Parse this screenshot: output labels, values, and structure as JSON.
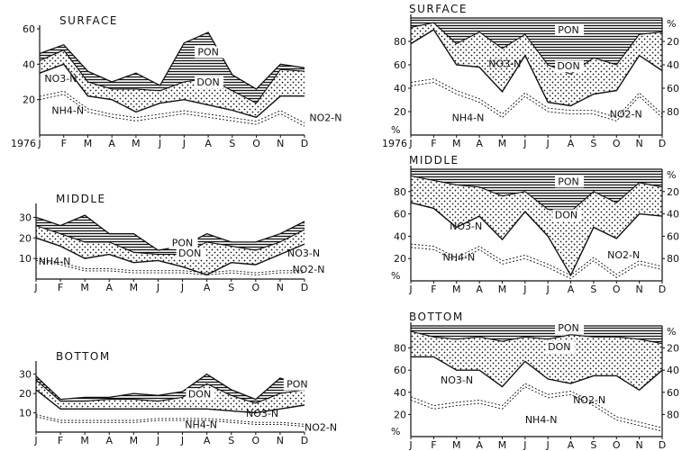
{
  "months": [
    "J",
    "F",
    "M",
    "A",
    "M",
    "J",
    "J",
    "A",
    "S",
    "O",
    "N",
    "D"
  ],
  "year_label": "1976",
  "colors": {
    "ink": "#111111",
    "paper": "#ffffff"
  },
  "chart_data": [
    {
      "id": "abs-surface",
      "type": "area",
      "panel": "left",
      "title": "SURFACE",
      "ylim": [
        0,
        60
      ],
      "yticks": [
        20,
        40,
        60
      ],
      "year_label": true,
      "x": [
        "J",
        "F",
        "M",
        "A",
        "M",
        "J",
        "J",
        "A",
        "S",
        "O",
        "N",
        "D"
      ],
      "series": [
        {
          "name": "NH4-N",
          "values": [
            20,
            23,
            13,
            10,
            8,
            10,
            12,
            10,
            8,
            6,
            12,
            5
          ]
        },
        {
          "name": "NO3-N",
          "values": [
            35,
            40,
            22,
            20,
            13,
            18,
            20,
            17,
            14,
            10,
            22,
            22
          ]
        },
        {
          "name": "DON",
          "values": [
            42,
            48,
            30,
            26,
            26,
            25,
            30,
            32,
            25,
            18,
            37,
            36
          ]
        },
        {
          "name": "PON",
          "values": [
            46,
            51,
            36,
            30,
            35,
            28,
            52,
            58,
            34,
            26,
            40,
            38
          ]
        }
      ],
      "labels": {
        "series": [
          "PON",
          "DON",
          "NO3-N",
          "NH4-N",
          "NO2-N"
        ]
      }
    },
    {
      "id": "abs-middle",
      "type": "area",
      "panel": "left",
      "title": "MIDDLE",
      "ylim": [
        0,
        35
      ],
      "yticks": [
        10,
        20,
        30
      ],
      "x": [
        "J",
        "F",
        "M",
        "A",
        "M",
        "J",
        "J",
        "A",
        "S",
        "O",
        "N",
        "D"
      ],
      "series": [
        {
          "name": "NH4-N",
          "values": [
            9,
            7,
            4,
            4,
            3,
            3,
            3,
            2,
            3,
            2,
            3,
            3
          ]
        },
        {
          "name": "NO3-N",
          "values": [
            20,
            16,
            10,
            12,
            8,
            9,
            6,
            2,
            8,
            7,
            12,
            17
          ]
        },
        {
          "name": "DON",
          "values": [
            26,
            22,
            18,
            18,
            13,
            12,
            12,
            18,
            16,
            14,
            18,
            24
          ]
        },
        {
          "name": "PON",
          "values": [
            30,
            26,
            31,
            22,
            22,
            14,
            16,
            22,
            18,
            18,
            22,
            28
          ]
        }
      ],
      "labels": {
        "series": [
          "PON",
          "DON",
          "NO3-N",
          "NH4-N",
          "NO2-N"
        ]
      }
    },
    {
      "id": "abs-bottom",
      "type": "area",
      "panel": "left",
      "title": "BOTTOM",
      "ylim": [
        0,
        35
      ],
      "yticks": [
        10,
        20,
        30
      ],
      "x": [
        "J",
        "F",
        "M",
        "A",
        "M",
        "J",
        "J",
        "A",
        "S",
        "O",
        "N",
        "D"
      ],
      "series": [
        {
          "name": "NH4-N",
          "values": [
            8,
            5,
            5,
            5,
            5,
            6,
            6,
            6,
            5,
            4,
            4,
            3
          ]
        },
        {
          "name": "NO3-N",
          "values": [
            22,
            12,
            12,
            12,
            12,
            12,
            12,
            12,
            11,
            10,
            12,
            14
          ]
        },
        {
          "name": "DON",
          "values": [
            27,
            16,
            16,
            17,
            17,
            16,
            18,
            25,
            19,
            15,
            20,
            22
          ]
        },
        {
          "name": "PON",
          "values": [
            29,
            17,
            18,
            18,
            20,
            19,
            21,
            30,
            22,
            17,
            28,
            24
          ]
        }
      ],
      "labels": {
        "series": [
          "PON",
          "DON",
          "NO3-N",
          "NH4-N",
          "NO2-N"
        ]
      }
    },
    {
      "id": "pct-surface",
      "type": "area",
      "panel": "right",
      "title": "SURFACE",
      "ylim": [
        0,
        100
      ],
      "yticks": [
        20,
        40,
        60,
        80
      ],
      "pct_axis": true,
      "year_label": true,
      "x": [
        "J",
        "F",
        "M",
        "A",
        "M",
        "J",
        "J",
        "A",
        "S",
        "O",
        "N",
        "D"
      ],
      "series": [
        {
          "name": "NH4-N",
          "values": [
            42,
            45,
            35,
            28,
            15,
            33,
            20,
            18,
            18,
            12,
            33,
            15
          ]
        },
        {
          "name": "NO3-N",
          "values": [
            78,
            90,
            60,
            58,
            37,
            68,
            28,
            25,
            35,
            38,
            68,
            55
          ]
        },
        {
          "name": "DON",
          "values": [
            92,
            96,
            78,
            88,
            74,
            86,
            60,
            52,
            66,
            60,
            86,
            88
          ]
        },
        {
          "name": "PON",
          "values": [
            100,
            100,
            100,
            100,
            100,
            100,
            100,
            100,
            100,
            100,
            100,
            100
          ]
        }
      ],
      "labels": {
        "series": [
          "PON",
          "DON",
          "NO3-N",
          "NH4-N",
          "NO2-N"
        ]
      }
    },
    {
      "id": "pct-middle",
      "type": "area",
      "panel": "right",
      "title": "MIDDLE",
      "ylim": [
        0,
        100
      ],
      "yticks": [
        20,
        40,
        60,
        80
      ],
      "pct_axis": true,
      "x": [
        "J",
        "F",
        "M",
        "A",
        "M",
        "J",
        "J",
        "A",
        "S",
        "O",
        "N",
        "D"
      ],
      "series": [
        {
          "name": "NH4-N",
          "values": [
            30,
            28,
            18,
            28,
            15,
            20,
            12,
            2,
            18,
            3,
            15,
            10
          ]
        },
        {
          "name": "NO3-N",
          "values": [
            70,
            65,
            48,
            58,
            37,
            62,
            40,
            5,
            48,
            38,
            60,
            58
          ]
        },
        {
          "name": "DON",
          "values": [
            94,
            90,
            86,
            84,
            76,
            80,
            64,
            62,
            80,
            70,
            88,
            84
          ]
        },
        {
          "name": "PON",
          "values": [
            100,
            100,
            100,
            100,
            100,
            100,
            100,
            100,
            100,
            100,
            100,
            100
          ]
        }
      ],
      "labels": {
        "series": [
          "PON",
          "DON",
          "NO3-N",
          "NH4-N",
          "NO2-N"
        ]
      }
    },
    {
      "id": "pct-bottom",
      "type": "area",
      "panel": "right",
      "title": "BOTTOM",
      "ylim": [
        0,
        100
      ],
      "yticks": [
        20,
        40,
        60,
        80
      ],
      "pct_axis": true,
      "x": [
        "J",
        "F",
        "M",
        "A",
        "M",
        "J",
        "J",
        "A",
        "S",
        "O",
        "N",
        "D"
      ],
      "series": [
        {
          "name": "NH4-N",
          "values": [
            33,
            25,
            28,
            30,
            25,
            45,
            35,
            38,
            28,
            15,
            10,
            5
          ]
        },
        {
          "name": "NO3-N",
          "values": [
            72,
            72,
            60,
            60,
            45,
            68,
            52,
            48,
            55,
            55,
            42,
            60
          ]
        },
        {
          "name": "DON",
          "values": [
            95,
            90,
            88,
            90,
            86,
            90,
            88,
            92,
            90,
            90,
            88,
            84
          ]
        },
        {
          "name": "PON",
          "values": [
            100,
            100,
            100,
            100,
            100,
            100,
            100,
            100,
            100,
            100,
            100,
            100
          ]
        }
      ],
      "labels": {
        "series": [
          "PON",
          "DON",
          "NO3-N",
          "NH4-N",
          "NO2-N"
        ]
      }
    }
  ]
}
